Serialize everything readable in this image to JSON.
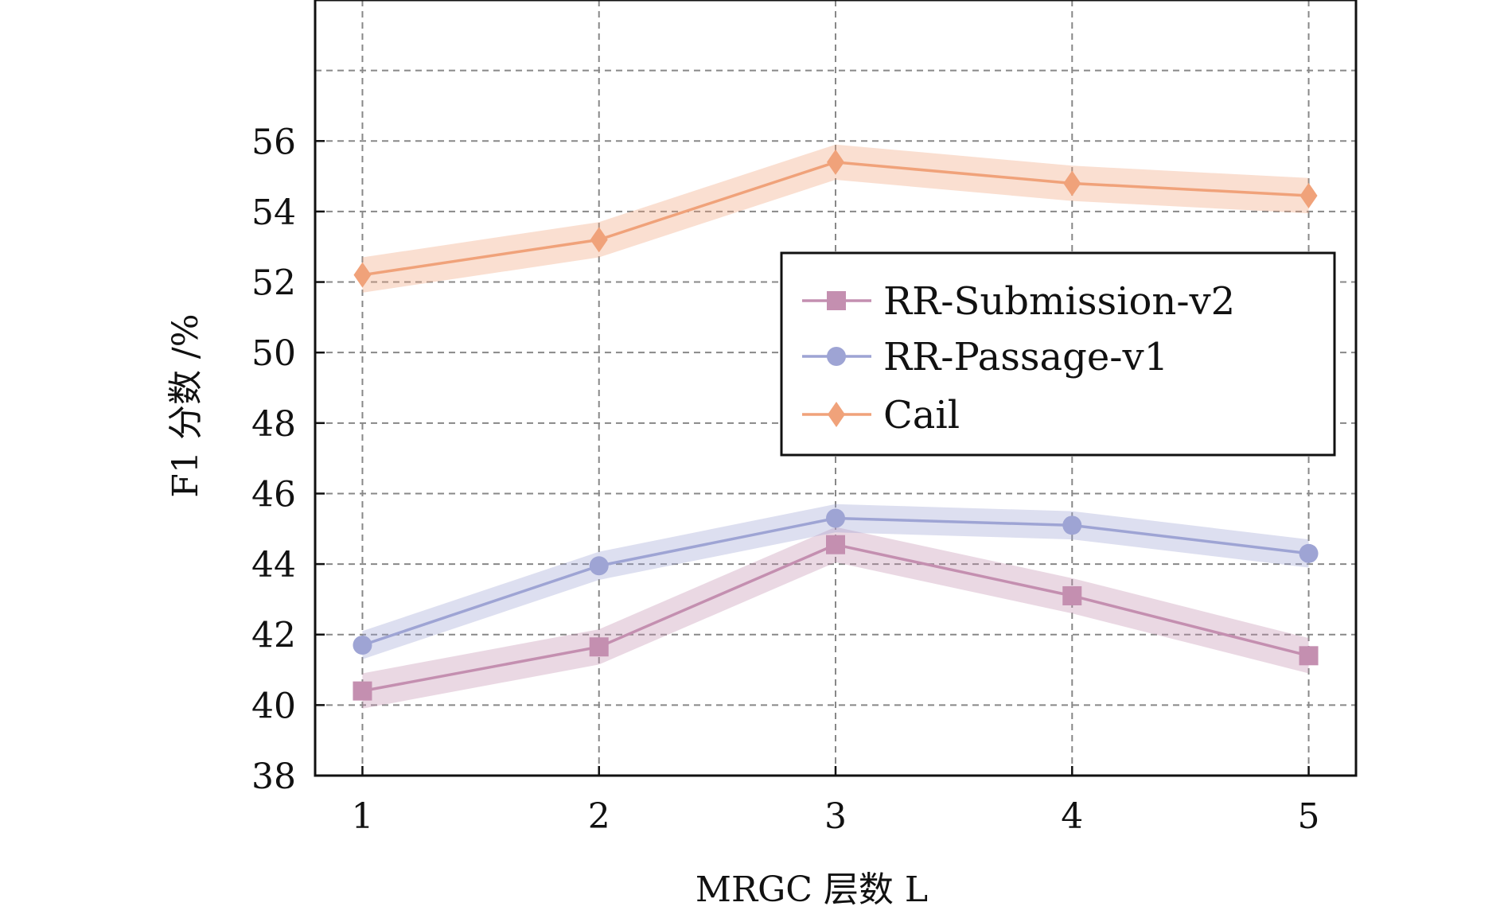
{
  "chart_data": {
    "type": "line",
    "x": [
      1,
      2,
      3,
      4,
      5
    ],
    "xlabel": "MRGC 层数 L",
    "ylabel": "F1 分数 /%",
    "xlim": [
      0.8,
      5.2
    ],
    "ylim": [
      38,
      60
    ],
    "yticks": [
      38,
      40,
      42,
      44,
      46,
      48,
      50,
      52,
      54,
      56
    ],
    "grid": true,
    "grid_style": "dashed",
    "legend_position": "right",
    "series": [
      {
        "name": "RR-Submission-v2",
        "values": [
          40.4,
          41.65,
          44.55,
          43.1,
          41.4
        ],
        "band": 0.5,
        "marker": "square",
        "color": "#c48fb0"
      },
      {
        "name": "RR-Passage-v1",
        "values": [
          41.7,
          43.95,
          45.3,
          45.1,
          44.3
        ],
        "band": 0.4,
        "marker": "circle",
        "color": "#9ea4d4"
      },
      {
        "name": "Cail",
        "values": [
          52.2,
          53.2,
          55.4,
          54.8,
          54.45
        ],
        "band": 0.5,
        "marker": "diamond",
        "color": "#f0a27a"
      }
    ]
  }
}
